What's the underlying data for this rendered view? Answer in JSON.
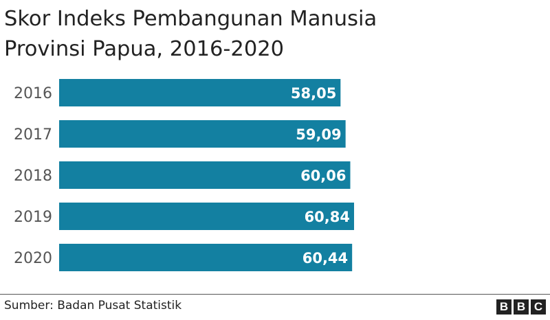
{
  "title_line1": "Skor Indeks Pembangunan Manusia",
  "title_line2": "Provinsi Papua, 2016-2020",
  "source": "Sumber: Badan Pusat Statistik",
  "logo_letters": [
    "B",
    "B",
    "C"
  ],
  "colors": {
    "bar": "#1380a1",
    "bar_label": "#ffffff",
    "axis_label": "#555555"
  },
  "chart_data": {
    "type": "bar",
    "orientation": "horizontal",
    "categories": [
      "2016",
      "2017",
      "2018",
      "2019",
      "2020"
    ],
    "values": [
      58.05,
      59.09,
      60.06,
      60.84,
      60.44
    ],
    "value_labels": [
      "58,05",
      "59,09",
      "60,06",
      "60,84",
      "60,44"
    ],
    "title": "Skor Indeks Pembangunan Manusia Provinsi Papua, 2016-2020",
    "xlabel": "",
    "ylabel": "",
    "xlim": [
      0,
      60.84
    ],
    "grid": false,
    "legend": "none"
  }
}
